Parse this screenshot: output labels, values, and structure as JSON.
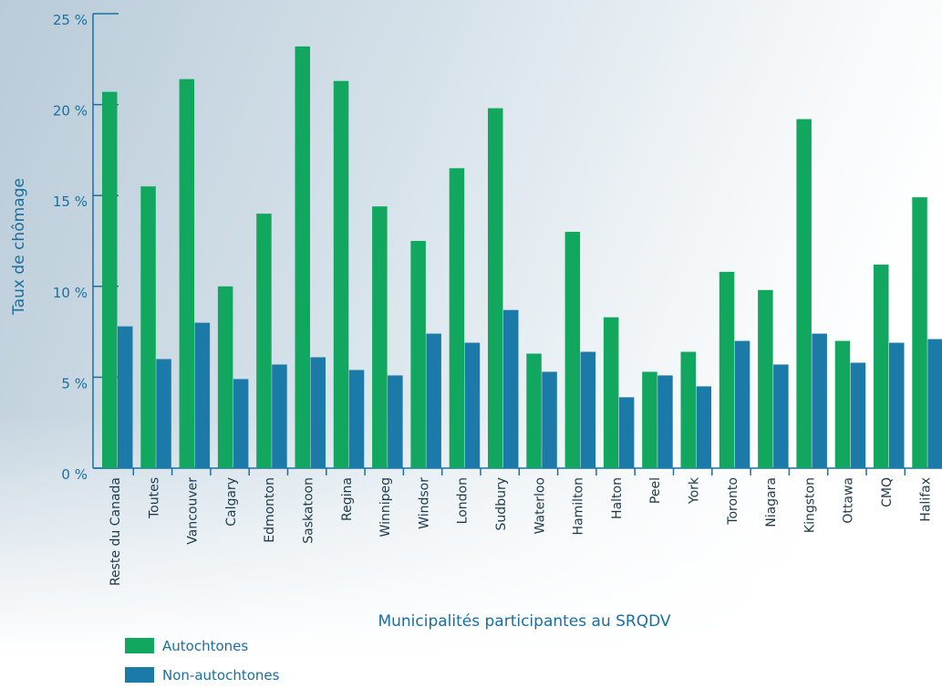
{
  "chart_data": {
    "type": "bar",
    "y_label": "Taux de chômage",
    "x_label": "Municipalités participantes au SRQDV",
    "categories": [
      "Reste du Canada",
      "Toutes",
      "Vancouver",
      "Calgary",
      "Edmonton",
      "Saskatoon",
      "Regina",
      "Winnipeg",
      "Windsor",
      "London",
      "Sudbury",
      "Waterloo",
      "Hamilton",
      "Halton",
      "Peel",
      "York",
      "Toronto",
      "Niagara",
      "Kingston",
      "Ottawa",
      "CMQ",
      "Halifax"
    ],
    "series": [
      {
        "name": "Autochtones",
        "color": "#12a75f",
        "values": [
          20.7,
          15.5,
          21.4,
          10.0,
          14.0,
          23.2,
          21.3,
          14.4,
          12.5,
          16.5,
          19.8,
          6.3,
          13.0,
          8.3,
          5.3,
          6.4,
          10.8,
          9.8,
          19.2,
          7.0,
          11.2,
          14.9
        ]
      },
      {
        "name": "Non-autochtones",
        "color": "#1b7aa7",
        "values": [
          7.8,
          6.0,
          8.0,
          4.9,
          5.7,
          6.1,
          5.4,
          5.1,
          7.4,
          6.9,
          8.7,
          5.3,
          6.4,
          3.9,
          5.1,
          4.5,
          7.0,
          5.7,
          7.4,
          5.8,
          6.9,
          7.1
        ]
      }
    ],
    "ylim": [
      0,
      25
    ],
    "yticks": [
      {
        "value": 0,
        "label": "0 %"
      },
      {
        "value": 5,
        "label": "5 %"
      },
      {
        "value": 10,
        "label": "10 %"
      },
      {
        "value": 15,
        "label": "15 %"
      },
      {
        "value": 20,
        "label": "20 %"
      },
      {
        "value": 25,
        "label": "25 %"
      }
    ]
  }
}
